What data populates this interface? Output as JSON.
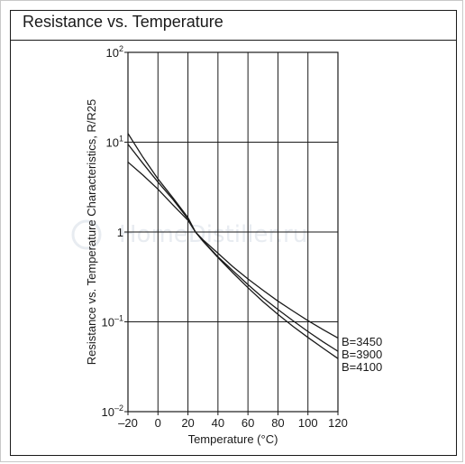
{
  "chart_data": {
    "type": "line",
    "title": "Resistance vs. Temperature",
    "xlabel": "Temperature (°C)",
    "ylabel": "Resistance vs. Temperature Characteristics, R/R25",
    "x_ticks": [
      "–20",
      "0",
      "20",
      "40",
      "60",
      "80",
      "100",
      "120"
    ],
    "y_ticks": [
      {
        "base": "10",
        "exp": "2"
      },
      {
        "base": "10",
        "exp": "1"
      },
      {
        "base": "1",
        "exp": ""
      },
      {
        "base": "10",
        "exp": "–1"
      },
      {
        "base": "10",
        "exp": "–2"
      }
    ],
    "xlim": [
      -20,
      120
    ],
    "ylim": [
      0.01,
      100
    ],
    "yscale": "log",
    "grid": true,
    "x": [
      -20,
      -10,
      0,
      10,
      20,
      25,
      30,
      40,
      50,
      60,
      70,
      80,
      90,
      100,
      110,
      120
    ],
    "series": [
      {
        "name": "B=3450",
        "values": [
          6.0,
          4.3,
          3.0,
          2.0,
          1.35,
          1.0,
          0.82,
          0.58,
          0.41,
          0.3,
          0.225,
          0.17,
          0.132,
          0.103,
          0.082,
          0.066
        ]
      },
      {
        "name": "B=3900",
        "values": [
          9.5,
          5.8,
          3.6,
          2.3,
          1.4,
          1.0,
          0.8,
          0.53,
          0.37,
          0.26,
          0.185,
          0.137,
          0.103,
          0.078,
          0.06,
          0.047
        ]
      },
      {
        "name": "B=4100",
        "values": [
          12.5,
          6.8,
          3.9,
          2.4,
          1.45,
          1.0,
          0.79,
          0.52,
          0.35,
          0.24,
          0.168,
          0.121,
          0.089,
          0.067,
          0.051,
          0.039
        ]
      }
    ]
  },
  "watermark": {
    "text": "HomeDistiller.ru"
  }
}
